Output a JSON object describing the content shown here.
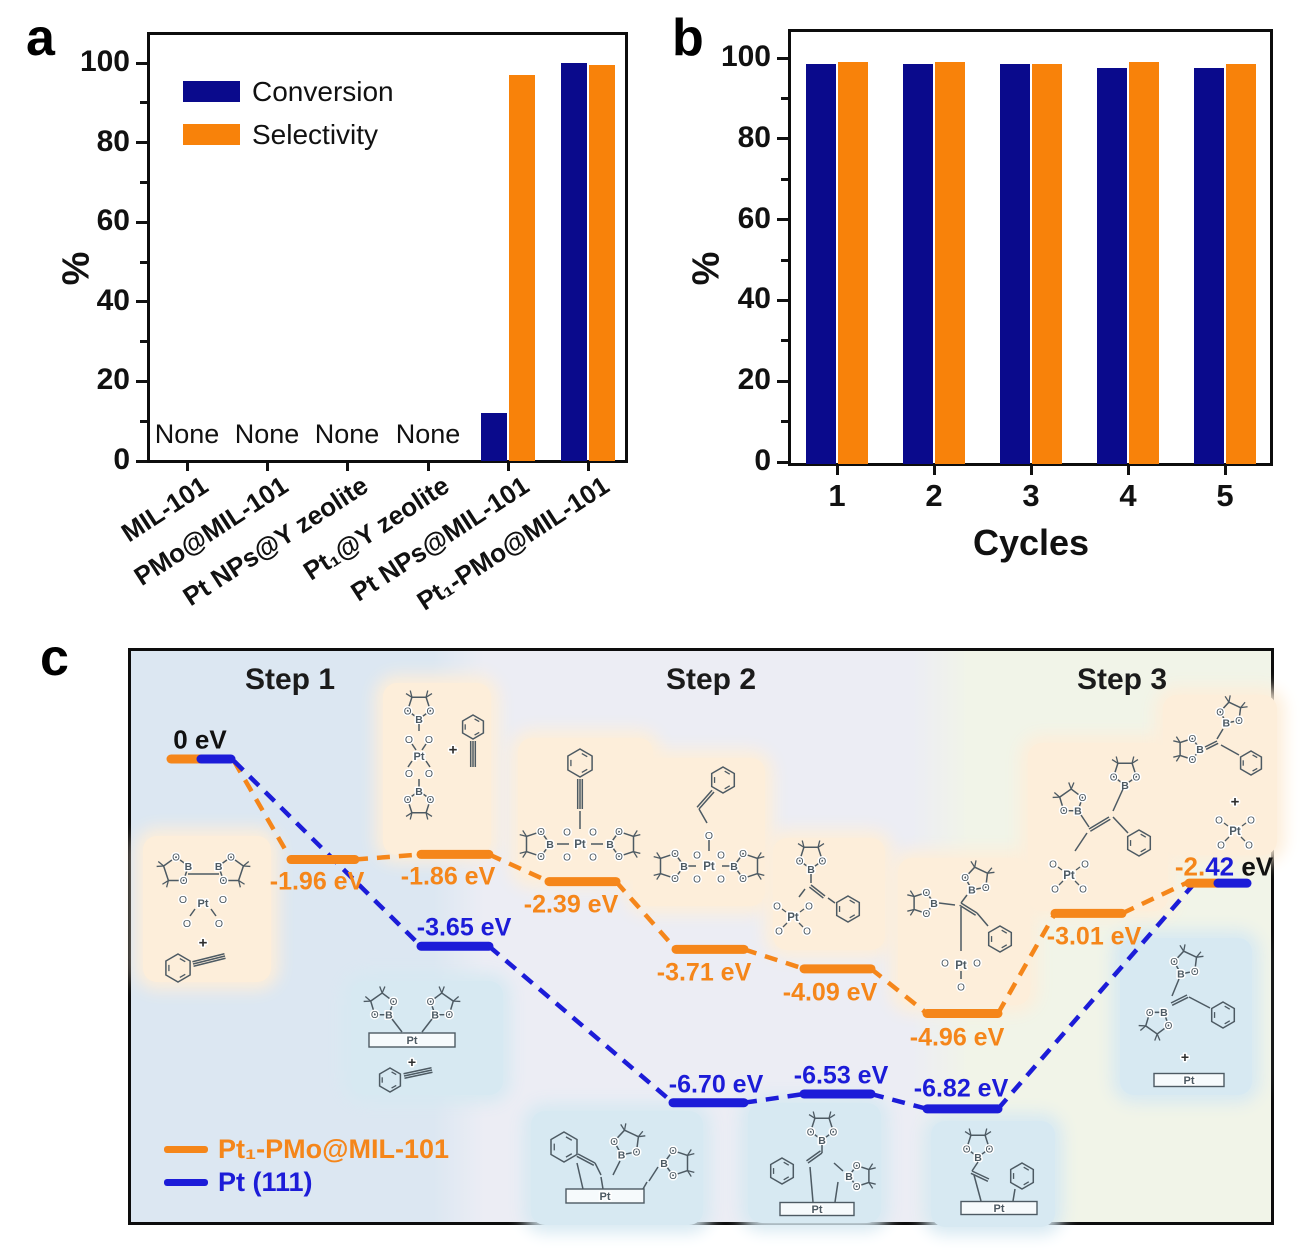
{
  "colors": {
    "conversion": "#0a0a8c",
    "selectivity": "#f8820a",
    "pt_pmo": "#f5861a",
    "pt111": "#1c1cd8",
    "axis": "#111111",
    "molecule": "#4d5a63",
    "hl_orange": "#fdeeda",
    "hl_blue": "#d7e9f2"
  },
  "panel_a": {
    "label": "a",
    "ylabel": "%",
    "ytick_labels": [
      "0",
      "20",
      "40",
      "60",
      "80",
      "100"
    ],
    "none_label": "None",
    "legend": [
      {
        "label": "Conversion"
      },
      {
        "label": "Selectivity"
      }
    ],
    "categories": [
      "MIL-101",
      "PMo@MIL-101",
      "Pt NPs@Y zeolite",
      "Pt₁@Y zeolite",
      "Pt NPs@MIL-101",
      "Pt₁-PMo@MIL-101"
    ],
    "conversion": [
      null,
      null,
      null,
      null,
      12,
      100
    ],
    "selectivity": [
      null,
      null,
      null,
      null,
      97,
      99.5
    ]
  },
  "panel_b": {
    "label": "b",
    "ylabel": "%",
    "xlabel": "Cycles",
    "ytick_labels": [
      "0",
      "20",
      "40",
      "60",
      "80",
      "100"
    ],
    "xtick_labels": [
      "1",
      "2",
      "3",
      "4",
      "5"
    ],
    "conversion": [
      99,
      99,
      99,
      98,
      98
    ],
    "selectivity": [
      99.5,
      99.5,
      99,
      99.5,
      99
    ]
  },
  "panel_c": {
    "label": "c",
    "steps": [
      "Step 1",
      "Step 2",
      "Step 3"
    ],
    "start_label": "0 eV",
    "end_label_parts": [
      {
        "text": "-2.",
        "color_key": "pt_pmo"
      },
      {
        "text": "42",
        "color_key": "pt111"
      },
      {
        "text": " eV",
        "color_key": "axis"
      }
    ],
    "series": [
      {
        "name": "Pt₁-PMo@MIL-101",
        "color_key": "pt_pmo",
        "values": [
          0,
          -1.96,
          -1.86,
          -2.39,
          -3.71,
          -4.09,
          -4.96,
          -3.01,
          -2.42
        ],
        "labels": [
          "0 eV",
          "-1.96 eV",
          "-1.86 eV",
          "-2.39 eV",
          "-3.71 eV",
          "-4.09 eV",
          "-4.96 eV",
          "-3.01 eV",
          "-2.42 eV"
        ]
      },
      {
        "name": "Pt (111)",
        "color_key": "pt111",
        "values": [
          0,
          -3.65,
          -6.7,
          -6.53,
          -6.82,
          -2.42
        ],
        "labels": [
          "0 eV",
          "-3.65 eV",
          "-6.70 eV",
          "-6.53 eV",
          "-6.82 eV",
          "-2.42 eV"
        ]
      }
    ],
    "atoms": {
      "O": "O",
      "B": "B",
      "Pt": "Pt",
      "plus": "+"
    }
  },
  "chart_data": [
    {
      "type": "bar",
      "panel": "a",
      "ylabel": "%",
      "ylim": [
        0,
        107
      ],
      "categories": [
        "MIL-101",
        "PMo@MIL-101",
        "Pt NPs@Y zeolite",
        "Pt₁@Y zeolite",
        "Pt NPs@MIL-101",
        "Pt₁-PMo@MIL-101"
      ],
      "series": [
        {
          "name": "Conversion",
          "values": [
            null,
            null,
            null,
            null,
            12,
            100
          ]
        },
        {
          "name": "Selectivity",
          "values": [
            null,
            null,
            null,
            null,
            97,
            99.5
          ]
        }
      ],
      "annotations": [
        "None",
        "None",
        "None",
        "None"
      ],
      "legend_position": "top-left",
      "grid": false
    },
    {
      "type": "bar",
      "panel": "b",
      "xlabel": "Cycles",
      "ylabel": "%",
      "ylim": [
        0,
        107
      ],
      "categories": [
        "1",
        "2",
        "3",
        "4",
        "5"
      ],
      "series": [
        {
          "name": "Conversion",
          "values": [
            99,
            99,
            99,
            98,
            98
          ]
        },
        {
          "name": "Selectivity",
          "values": [
            99.5,
            99.5,
            99,
            99.5,
            99
          ]
        }
      ],
      "grid": false
    },
    {
      "type": "line",
      "panel": "c",
      "subtype": "reaction-energy-profile",
      "ylabel": "eV",
      "steps": [
        "Step 1",
        "Step 2",
        "Step 3"
      ],
      "series": [
        {
          "name": "Pt₁-PMo@MIL-101",
          "values": [
            0,
            -1.96,
            -1.86,
            -2.39,
            -3.71,
            -4.09,
            -4.96,
            -3.01,
            -2.42
          ]
        },
        {
          "name": "Pt (111)",
          "values": [
            0,
            -3.65,
            -6.7,
            -6.53,
            -6.82,
            -2.42
          ]
        }
      ],
      "shared_start_ev": 0,
      "shared_end_ev": -2.42,
      "legend_position": "bottom-left",
      "grid": false
    }
  ]
}
